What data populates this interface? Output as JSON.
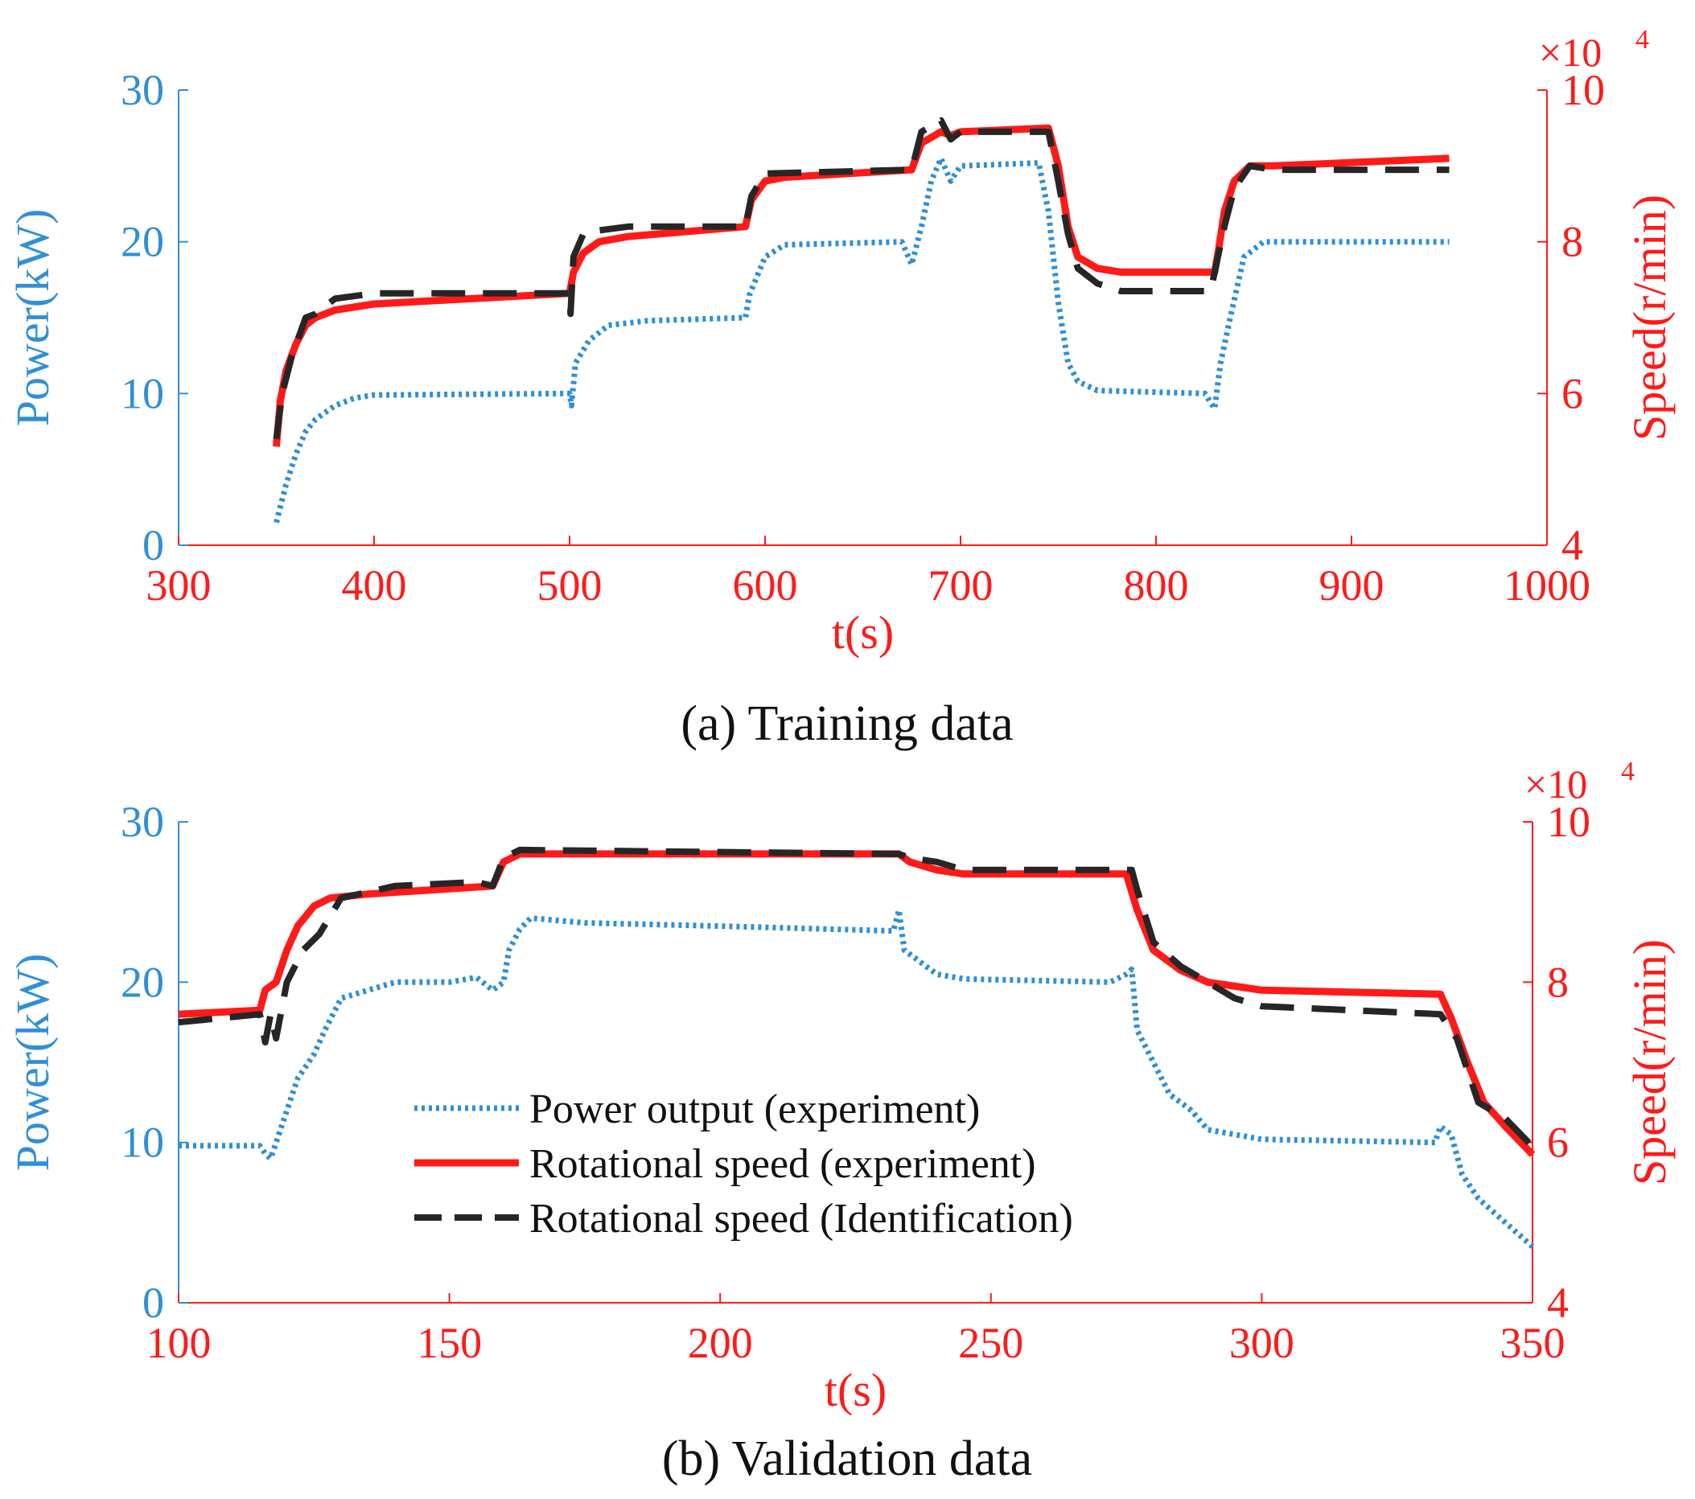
{
  "colors": {
    "power": "#2F8FD8",
    "speed_exp": "#FF1A1A",
    "speed_id": "#262626",
    "axis_left": "#2F8FD8",
    "axis_bottom_right": "#FF1A1A",
    "caption": "#111111"
  },
  "legend": {
    "power": "Power output (experiment)",
    "speed_exp": "Rotational speed (experiment)",
    "speed_id": "Rotational speed (Identification)"
  },
  "chart_data": [
    {
      "type": "line",
      "caption": "(a) Training data",
      "xlabel": "t(s)",
      "ylabel_left": "Power(kW)",
      "ylabel_right": "Speed(r/min)",
      "right_exponent": "×10",
      "right_exponent_power": "4",
      "xlim": [
        300,
        1000
      ],
      "ylim_left": [
        0,
        30
      ],
      "ylim_right": [
        4,
        10
      ],
      "xticks": [
        "300",
        "400",
        "500",
        "600",
        "700",
        "800",
        "900",
        "1000"
      ],
      "yticks_left": [
        "0",
        "10",
        "20",
        "30"
      ],
      "yticks_right": [
        "4",
        "6",
        "8",
        "10"
      ],
      "series": [
        {
          "name": "Power output (experiment)",
          "axis": "left",
          "style": "dotted",
          "points": [
            [
              350,
              1.5
            ],
            [
              355,
              4
            ],
            [
              360,
              6
            ],
            [
              365,
              7.5
            ],
            [
              370,
              8.3
            ],
            [
              380,
              9.2
            ],
            [
              390,
              9.7
            ],
            [
              400,
              9.9
            ],
            [
              500,
              10
            ],
            [
              501,
              9.2
            ],
            [
              503,
              12
            ],
            [
              510,
              13.5
            ],
            [
              520,
              14.5
            ],
            [
              540,
              14.8
            ],
            [
              590,
              15
            ],
            [
              592,
              16.5
            ],
            [
              600,
              19
            ],
            [
              610,
              19.8
            ],
            [
              670,
              20
            ],
            [
              675,
              18.5
            ],
            [
              680,
              21
            ],
            [
              685,
              24
            ],
            [
              690,
              25.5
            ],
            [
              695,
              24
            ],
            [
              700,
              25
            ],
            [
              740,
              25.2
            ],
            [
              745,
              22
            ],
            [
              750,
              16
            ],
            [
              755,
              12
            ],
            [
              760,
              10.8
            ],
            [
              770,
              10.2
            ],
            [
              825,
              10
            ],
            [
              830,
              9
            ],
            [
              833,
              12
            ],
            [
              838,
              15
            ],
            [
              845,
              19
            ],
            [
              855,
              20
            ],
            [
              950,
              20
            ]
          ]
        },
        {
          "name": "Rotational speed (experiment)",
          "axis": "right",
          "style": "solid",
          "points": [
            [
              350,
              5.3
            ],
            [
              352,
              5.9
            ],
            [
              355,
              6.3
            ],
            [
              360,
              6.65
            ],
            [
              365,
              6.9
            ],
            [
              370,
              7.0
            ],
            [
              380,
              7.1
            ],
            [
              400,
              7.18
            ],
            [
              450,
              7.25
            ],
            [
              500,
              7.32
            ],
            [
              502,
              7.6
            ],
            [
              507,
              7.85
            ],
            [
              515,
              8.0
            ],
            [
              530,
              8.07
            ],
            [
              590,
              8.2
            ],
            [
              593,
              8.55
            ],
            [
              600,
              8.8
            ],
            [
              610,
              8.85
            ],
            [
              675,
              8.95
            ],
            [
              680,
              9.3
            ],
            [
              690,
              9.45
            ],
            [
              695,
              9.4
            ],
            [
              700,
              9.45
            ],
            [
              745,
              9.5
            ],
            [
              750,
              9.0
            ],
            [
              755,
              8.2
            ],
            [
              760,
              7.8
            ],
            [
              770,
              7.65
            ],
            [
              782,
              7.6
            ],
            [
              830,
              7.6
            ],
            [
              832,
              7.9
            ],
            [
              835,
              8.4
            ],
            [
              840,
              8.8
            ],
            [
              848,
              9.0
            ],
            [
              860,
              9.0
            ],
            [
              950,
              9.1
            ]
          ]
        },
        {
          "name": "Rotational speed (Identification)",
          "axis": "right",
          "style": "dashed",
          "points": [
            [
              350,
              5.4
            ],
            [
              353,
              6.0
            ],
            [
              358,
              6.5
            ],
            [
              365,
              7.0
            ],
            [
              370,
              7.05
            ],
            [
              380,
              7.25
            ],
            [
              400,
              7.32
            ],
            [
              500,
              7.32
            ],
            [
              500.5,
              7.05
            ],
            [
              502,
              7.8
            ],
            [
              507,
              8.1
            ],
            [
              515,
              8.15
            ],
            [
              530,
              8.2
            ],
            [
              590,
              8.2
            ],
            [
              593,
              8.6
            ],
            [
              600,
              8.9
            ],
            [
              675,
              8.95
            ],
            [
              680,
              9.45
            ],
            [
              690,
              9.6
            ],
            [
              695,
              9.35
            ],
            [
              700,
              9.45
            ],
            [
              745,
              9.45
            ],
            [
              750,
              8.8
            ],
            [
              755,
              8.1
            ],
            [
              760,
              7.65
            ],
            [
              770,
              7.45
            ],
            [
              782,
              7.35
            ],
            [
              828,
              7.35
            ],
            [
              830,
              7.6
            ],
            [
              835,
              8.2
            ],
            [
              840,
              8.7
            ],
            [
              848,
              9.0
            ],
            [
              860,
              8.95
            ],
            [
              950,
              8.95
            ]
          ]
        }
      ]
    },
    {
      "type": "line",
      "caption": "(b) Validation data",
      "xlabel": "t(s)",
      "ylabel_left": "Power(kW)",
      "ylabel_right": "Speed(r/min)",
      "right_exponent": "×10",
      "right_exponent_power": "4",
      "xlim": [
        100,
        350
      ],
      "ylim_left": [
        0,
        30
      ],
      "ylim_right": [
        4,
        10
      ],
      "xticks": [
        "100",
        "150",
        "200",
        "250",
        "300",
        "350"
      ],
      "yticks_left": [
        "0",
        "10",
        "20",
        "30"
      ],
      "yticks_right": [
        "4",
        "6",
        "8",
        "10"
      ],
      "series": [
        {
          "name": "Power output (experiment)",
          "axis": "left",
          "style": "dotted",
          "points": [
            [
              100,
              9.8
            ],
            [
              115,
              9.8
            ],
            [
              116,
              9.3
            ],
            [
              117,
              9.0
            ],
            [
              118,
              10
            ],
            [
              120,
              12
            ],
            [
              122,
              14
            ],
            [
              125,
              15.5
            ],
            [
              127,
              17
            ],
            [
              130,
              19
            ],
            [
              135,
              19.5
            ],
            [
              140,
              20
            ],
            [
              150,
              20
            ],
            [
              155,
              20.3
            ],
            [
              158,
              19.5
            ],
            [
              160,
              20
            ],
            [
              161,
              22
            ],
            [
              163,
              23.3
            ],
            [
              165,
              24
            ],
            [
              175,
              23.7
            ],
            [
              200,
              23.5
            ],
            [
              232,
              23.2
            ],
            [
              233,
              24.5
            ],
            [
              234,
              22
            ],
            [
              236,
              21.5
            ],
            [
              238,
              21
            ],
            [
              240,
              20.5
            ],
            [
              245,
              20.2
            ],
            [
              272,
              20
            ],
            [
              275,
              20.5
            ],
            [
              276,
              20.8
            ],
            [
              277,
              17
            ],
            [
              280,
              15
            ],
            [
              283,
              13
            ],
            [
              287,
              12
            ],
            [
              290,
              10.8
            ],
            [
              300,
              10.2
            ],
            [
              332,
              10
            ],
            [
              333,
              11
            ],
            [
              335,
              10.5
            ],
            [
              337,
              8
            ],
            [
              340,
              6.5
            ],
            [
              345,
              5
            ],
            [
              350,
              3.5
            ]
          ]
        },
        {
          "name": "Rotational speed (experiment)",
          "axis": "right",
          "style": "solid",
          "points": [
            [
              100,
              7.6
            ],
            [
              115,
              7.65
            ],
            [
              116,
              7.9
            ],
            [
              118,
              8.0
            ],
            [
              120,
              8.4
            ],
            [
              122,
              8.7
            ],
            [
              125,
              8.95
            ],
            [
              128,
              9.05
            ],
            [
              135,
              9.1
            ],
            [
              158,
              9.2
            ],
            [
              160,
              9.5
            ],
            [
              163,
              9.6
            ],
            [
              233,
              9.6
            ],
            [
              235,
              9.5
            ],
            [
              240,
              9.4
            ],
            [
              245,
              9.35
            ],
            [
              275,
              9.35
            ],
            [
              277,
              8.9
            ],
            [
              280,
              8.4
            ],
            [
              285,
              8.15
            ],
            [
              290,
              8.0
            ],
            [
              300,
              7.9
            ],
            [
              333,
              7.85
            ],
            [
              335,
              7.55
            ],
            [
              338,
              7.0
            ],
            [
              341,
              6.5
            ],
            [
              345,
              6.2
            ],
            [
              350,
              5.85
            ]
          ]
        },
        {
          "name": "Rotational speed (Identification)",
          "axis": "right",
          "style": "dashed",
          "points": [
            [
              100,
              7.5
            ],
            [
              115,
              7.6
            ],
            [
              116,
              7.25
            ],
            [
              117,
              7.6
            ],
            [
              118,
              7.3
            ],
            [
              120,
              8.0
            ],
            [
              123,
              8.4
            ],
            [
              126,
              8.6
            ],
            [
              130,
              9.05
            ],
            [
              140,
              9.2
            ],
            [
              155,
              9.25
            ],
            [
              158,
              9.2
            ],
            [
              160,
              9.55
            ],
            [
              163,
              9.65
            ],
            [
              233,
              9.6
            ],
            [
              235,
              9.55
            ],
            [
              240,
              9.5
            ],
            [
              245,
              9.4
            ],
            [
              276,
              9.4
            ],
            [
              277,
              9.15
            ],
            [
              280,
              8.5
            ],
            [
              285,
              8.2
            ],
            [
              290,
              8.0
            ],
            [
              295,
              7.8
            ],
            [
              300,
              7.7
            ],
            [
              333,
              7.6
            ],
            [
              336,
              7.3
            ],
            [
              340,
              6.5
            ],
            [
              345,
              6.3
            ],
            [
              350,
              5.95
            ]
          ]
        }
      ]
    }
  ]
}
